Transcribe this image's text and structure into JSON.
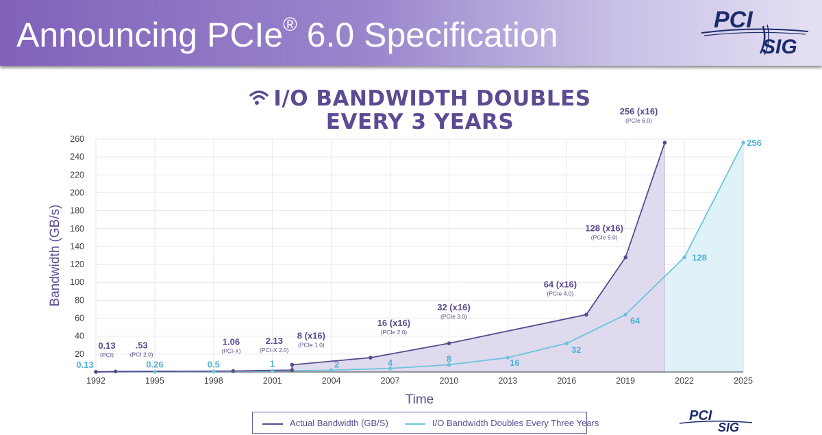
{
  "slide": {
    "title_main": "Announcing PCIe",
    "title_reg": "®",
    "title_rest": " 6.0 Specification",
    "logo_pci": "PCI",
    "logo_sig": "SIG",
    "brand_color": "#7f68b9"
  },
  "heading": {
    "line1": "I/O BANDWIDTH DOUBLES",
    "line2": "EVERY 3 YEARS",
    "icon": "wifi-icon"
  },
  "chart_data": {
    "type": "line",
    "xlabel": "Time",
    "ylabel": "Bandwidth (GB/s)",
    "xlim": [
      1992,
      2025
    ],
    "ylim": [
      0,
      260
    ],
    "xticks": [
      1992,
      1995,
      1998,
      2001,
      2004,
      2007,
      2010,
      2013,
      2016,
      2019,
      2022,
      2025
    ],
    "yticks": [
      0,
      20,
      40,
      60,
      80,
      100,
      120,
      140,
      160,
      180,
      200,
      220,
      240,
      260
    ],
    "ytick_labels_shown": [
      "20",
      "40",
      "60",
      "80",
      "100",
      "120",
      "140",
      "160",
      "180",
      "200",
      "220",
      "240",
      "260"
    ],
    "grid": true,
    "legend_position": "bottom",
    "series": [
      {
        "name": "Actual Bandwidth (GB/S)",
        "color": "#5a4a8e",
        "fill": "#dcd6ec",
        "points": [
          {
            "x": 1992,
            "y": 0.13,
            "label": "0.13",
            "sublabel": "(PCI)"
          },
          {
            "x": 1993,
            "y": 0.53,
            "label": ".53",
            "sublabel": "(PCI 2.0)"
          },
          {
            "x": 1999,
            "y": 1.06,
            "label": "1.06",
            "sublabel": "(PCI-X)"
          },
          {
            "x": 2002,
            "y": 2.13,
            "label": "2.13",
            "sublabel": "(PCI-X 2.0)"
          },
          {
            "x": 2002,
            "y": 8,
            "label": "8 (x16)",
            "sublabel": "(PCIe 1.0)"
          },
          {
            "x": 2006,
            "y": 16,
            "label": "16 (x16)",
            "sublabel": "(PCIe 2.0)"
          },
          {
            "x": 2010,
            "y": 32,
            "label": "32 (x16)",
            "sublabel": "(PCIe 3.0)"
          },
          {
            "x": 2017,
            "y": 64,
            "label": "64 (x16)",
            "sublabel": "(PCIe 4.0)"
          },
          {
            "x": 2019,
            "y": 128,
            "label": "128 (x16)",
            "sublabel": "(PCIe 5.0)"
          },
          {
            "x": 2021,
            "y": 256,
            "label": "256 (x16)",
            "sublabel": "(PCIe 6.0)"
          }
        ]
      },
      {
        "name": "I/O Bandwidth Doubles Every Three Years",
        "color": "#6cc4dc",
        "fill": "#dff2f8",
        "points": [
          {
            "x": 1992,
            "y": 0.13,
            "label": "0.13"
          },
          {
            "x": 1995,
            "y": 0.26,
            "label": "0.26"
          },
          {
            "x": 1998,
            "y": 0.5,
            "label": "0.5"
          },
          {
            "x": 2001,
            "y": 1,
            "label": "1"
          },
          {
            "x": 2004,
            "y": 2,
            "label": "2"
          },
          {
            "x": 2007,
            "y": 4,
            "label": "4"
          },
          {
            "x": 2010,
            "y": 8,
            "label": "8"
          },
          {
            "x": 2013,
            "y": 16,
            "label": "16"
          },
          {
            "x": 2016,
            "y": 32,
            "label": "32"
          },
          {
            "x": 2019,
            "y": 64,
            "label": "64"
          },
          {
            "x": 2022,
            "y": 128,
            "label": "128"
          },
          {
            "x": 2025,
            "y": 256,
            "label": "256"
          }
        ]
      }
    ]
  }
}
